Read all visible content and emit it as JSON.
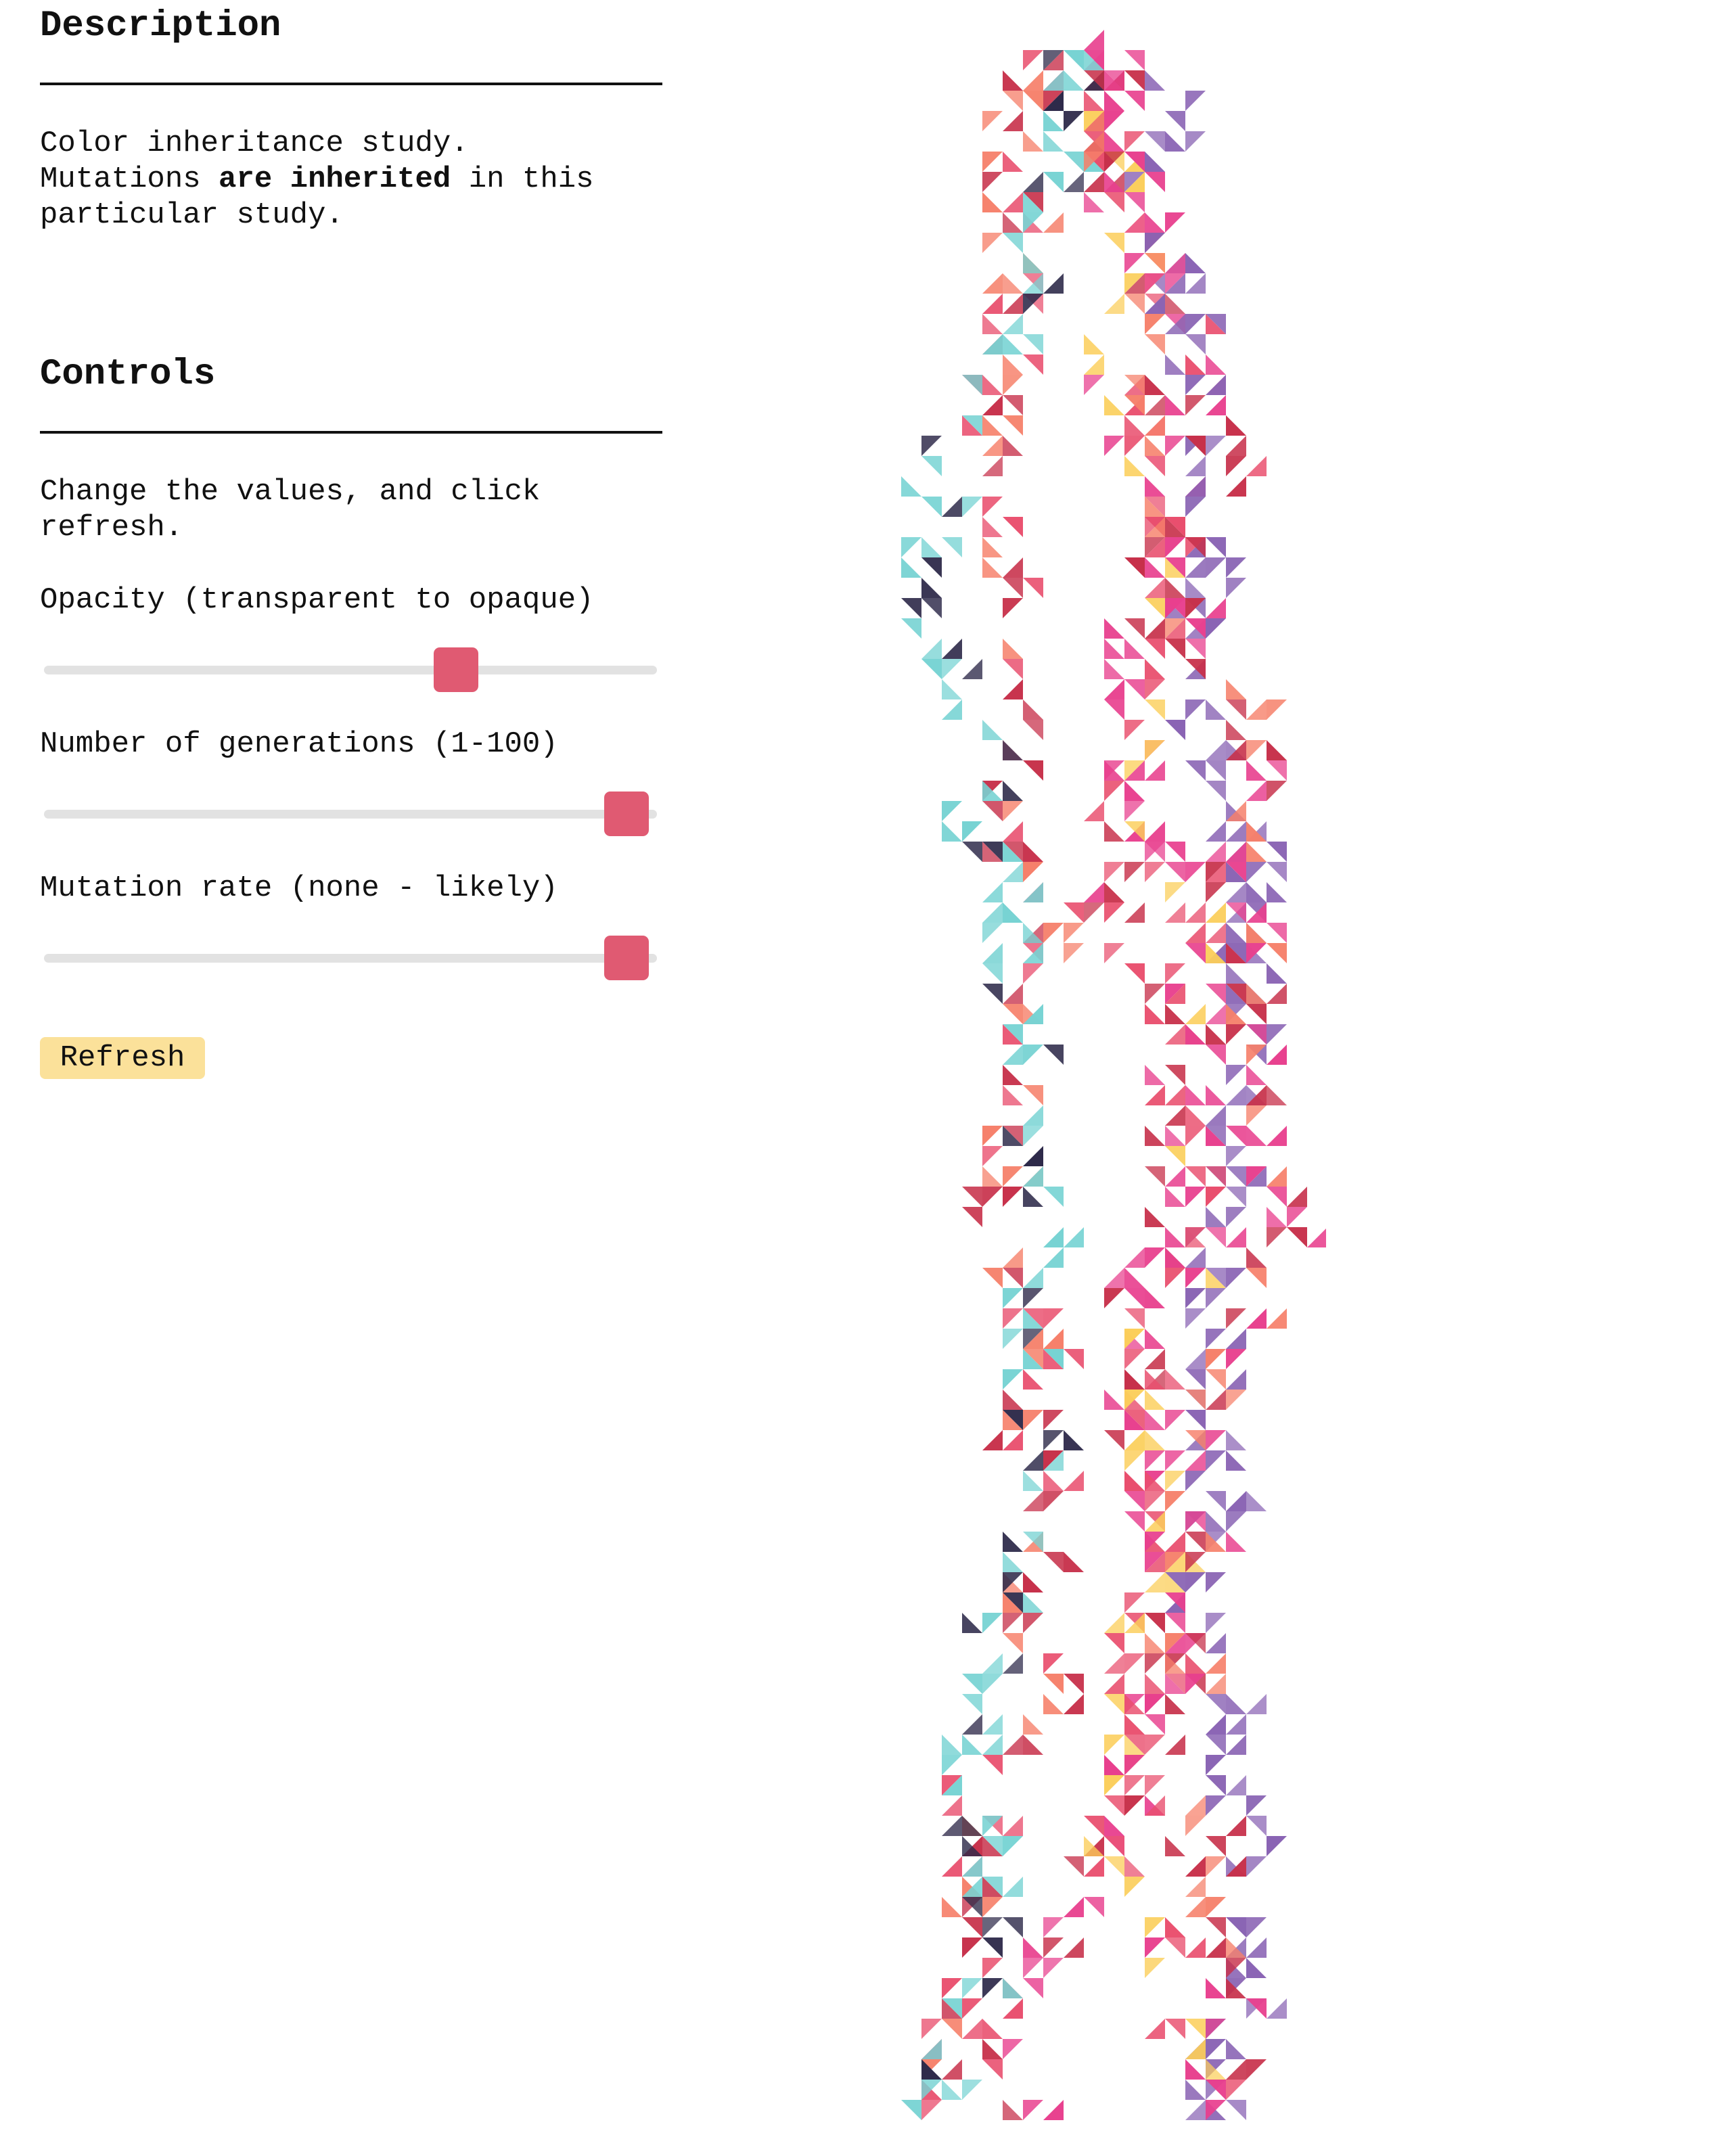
{
  "description": {
    "heading": "Description",
    "line1": "Color inheritance study.",
    "line2_pre": "Mutations ",
    "line2_bold": "are inherited",
    "line2_post": " in this",
    "line3": "particular study."
  },
  "controls": {
    "heading": "Controls",
    "intro_line1": "Change the values, and click",
    "intro_line2": "refresh.",
    "opacity": {
      "label": "Opacity (transparent to opaque)",
      "value_fraction": 0.68
    },
    "generations": {
      "label": "Number of generations (1-100)",
      "value": 100
    },
    "mutation": {
      "label": "Mutation rate (none - likely)",
      "value_fraction": 1.0
    },
    "refresh_label": "Refresh"
  },
  "artwork": {
    "palette": [
      "#e94f6e",
      "#f6806a",
      "#fbce5a",
      "#77d3d3",
      "#8a64b4",
      "#2e2a4a",
      "#c7304a",
      "#e8408e"
    ]
  }
}
